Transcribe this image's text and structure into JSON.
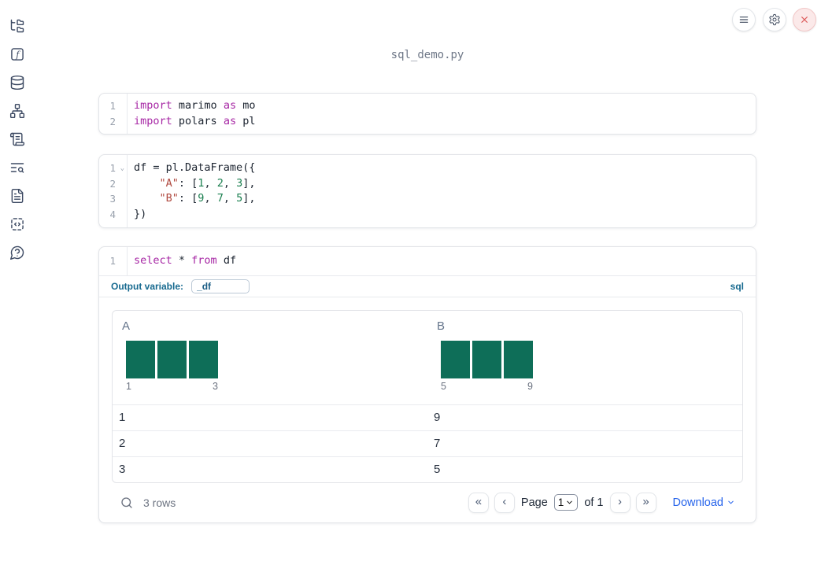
{
  "window": {
    "title": "sql_demo.py"
  },
  "topbar": {
    "icons": [
      "hamburger-menu-icon",
      "gear-icon",
      "close-x-icon"
    ]
  },
  "sidebar": {
    "icons": [
      "file-explorer-icon",
      "functions-icon",
      "datasources-icon",
      "dependency-graph-icon",
      "snippets-icon",
      "logs-search-icon",
      "documentation-icon",
      "scratchpad-code-icon",
      "help-icon"
    ]
  },
  "cells": [
    {
      "type": "python",
      "lines": [
        {
          "num": "1",
          "tokens": [
            {
              "t": "import",
              "c": "kw"
            },
            {
              "t": " marimo ",
              "c": ""
            },
            {
              "t": "as",
              "c": "kw"
            },
            {
              "t": " mo",
              "c": ""
            }
          ]
        },
        {
          "num": "2",
          "tokens": [
            {
              "t": "import",
              "c": "kw"
            },
            {
              "t": " polars ",
              "c": ""
            },
            {
              "t": "as",
              "c": "kw"
            },
            {
              "t": " pl",
              "c": ""
            }
          ]
        }
      ]
    },
    {
      "type": "python",
      "lines": [
        {
          "num": "1",
          "fold": true,
          "tokens": [
            {
              "t": "df = pl.DataFrame({",
              "c": ""
            }
          ]
        },
        {
          "num": "2",
          "tokens": [
            {
              "t": "    ",
              "c": ""
            },
            {
              "t": "\"A\"",
              "c": "str"
            },
            {
              "t": ": [",
              "c": ""
            },
            {
              "t": "1",
              "c": "num"
            },
            {
              "t": ", ",
              "c": ""
            },
            {
              "t": "2",
              "c": "num"
            },
            {
              "t": ", ",
              "c": ""
            },
            {
              "t": "3",
              "c": "num"
            },
            {
              "t": "],",
              "c": ""
            }
          ]
        },
        {
          "num": "3",
          "tokens": [
            {
              "t": "    ",
              "c": ""
            },
            {
              "t": "\"B\"",
              "c": "str"
            },
            {
              "t": ": [",
              "c": ""
            },
            {
              "t": "9",
              "c": "num"
            },
            {
              "t": ", ",
              "c": ""
            },
            {
              "t": "7",
              "c": "num"
            },
            {
              "t": ", ",
              "c": ""
            },
            {
              "t": "5",
              "c": "num"
            },
            {
              "t": "],",
              "c": ""
            }
          ]
        },
        {
          "num": "4",
          "tokens": [
            {
              "t": "})",
              "c": ""
            }
          ]
        }
      ]
    },
    {
      "type": "sql",
      "lines": [
        {
          "num": "1",
          "tokens": [
            {
              "t": "select",
              "c": "kw"
            },
            {
              "t": " * ",
              "c": ""
            },
            {
              "t": "from",
              "c": "kw"
            },
            {
              "t": " df",
              "c": ""
            }
          ]
        }
      ],
      "footer": {
        "output_variable_label": "Output variable:",
        "output_variable_value": "_df",
        "language_badge": "sql"
      }
    }
  ],
  "table": {
    "columns": [
      {
        "name": "A",
        "histogram": {
          "type": "bar",
          "values": [
            1,
            1,
            1
          ],
          "min_label": "1",
          "max_label": "3"
        }
      },
      {
        "name": "B",
        "histogram": {
          "type": "bar",
          "values": [
            1,
            1,
            1
          ],
          "min_label": "5",
          "max_label": "9"
        }
      }
    ],
    "rows": [
      [
        "1",
        "9"
      ],
      [
        "2",
        "7"
      ],
      [
        "3",
        "5"
      ]
    ],
    "footer": {
      "row_count": "3 rows",
      "pagination": {
        "first": "«",
        "prev": "‹",
        "page_label": "Page",
        "page_value": "1",
        "of_label": "of 1",
        "next": "›",
        "last": "»"
      },
      "download_label": "Download"
    }
  },
  "colors": {
    "sidebar_icon": "#3d4a63",
    "keyword": "#a626a4",
    "string": "#b0493f",
    "number": "#1a7f4f",
    "histogram_bar": "#0e6e58",
    "sql_accent": "#16698f",
    "download_link": "#2563eb",
    "close_button": "#dd5c5c",
    "muted_text": "#6b7280"
  }
}
